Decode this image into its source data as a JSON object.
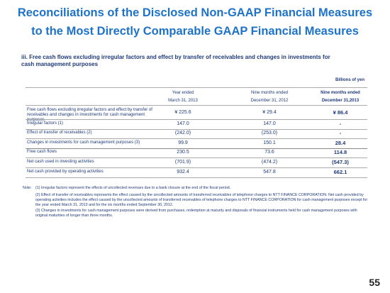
{
  "header": {
    "title_line1": "Reconciliations of the Disclosed Non-GAAP Financial Measures",
    "title_line2": "to the Most Directly Comparable GAAP Financial Measures",
    "subtitle": "iii. Free cash flows excluding irregular factors and effect by transfer of receivables and changes in investments for cash management purposes",
    "unit": "Billions of yen"
  },
  "table": {
    "columns": [
      [
        "Year ended",
        "March 31, 2013"
      ],
      [
        "Nine months ended",
        "December 31, 2012"
      ],
      [
        "Nine months ended",
        "December 31,2013"
      ]
    ],
    "rows": [
      [
        "Free cash flows excluding irregular factors and effect by transfer of receivables and changes in investments for cash management purposes",
        "¥  225.6",
        "¥  29.4",
        "¥  86.4"
      ],
      [
        "Irregular factors (1)",
        "147.0",
        "147.0",
        "-"
      ],
      [
        "Effect of transfer of receivables (2)",
        "(242.0)",
        "(253.0)",
        "-"
      ],
      [
        "Changes in investments for cash management purposes (3)",
        "99.9",
        "150.1",
        "28.4"
      ],
      [
        "Free cash flows",
        "230.5",
        "73.6",
        "114.8"
      ],
      [
        "Net cash used in investing activities",
        "(701.9)",
        "(474.2)",
        "(547.3)"
      ],
      [
        "Net cash provided by operating activities",
        "932.4",
        "547.8",
        "662.1"
      ]
    ]
  },
  "notes": {
    "label": "Note:",
    "items": [
      "(1) Irregular factors represent the effects of uncollected revenues due to a bank closure at the end of the fiscal period.",
      "(2) Effect of transfer of receivables represents the effect caused by the uncollected amounts of transferred receivables of telephone charges to NTT FINANCE CORPORATION. Net cash provided by operating activities includes the effect caused by the uncollected amounts of transferred receivables of telephone charges to NTT FINANCE CORPORATION for cash management purposes except for the year ended March 31, 2013 and for the six months ended September 30, 2012.",
      "(3) Changes in investments for cash management purposes were derived from purchases, redemption at maturity and disposals of financial instruments held for cash management purposes with original maturities of longer than three months."
    ]
  },
  "page_number": "55"
}
